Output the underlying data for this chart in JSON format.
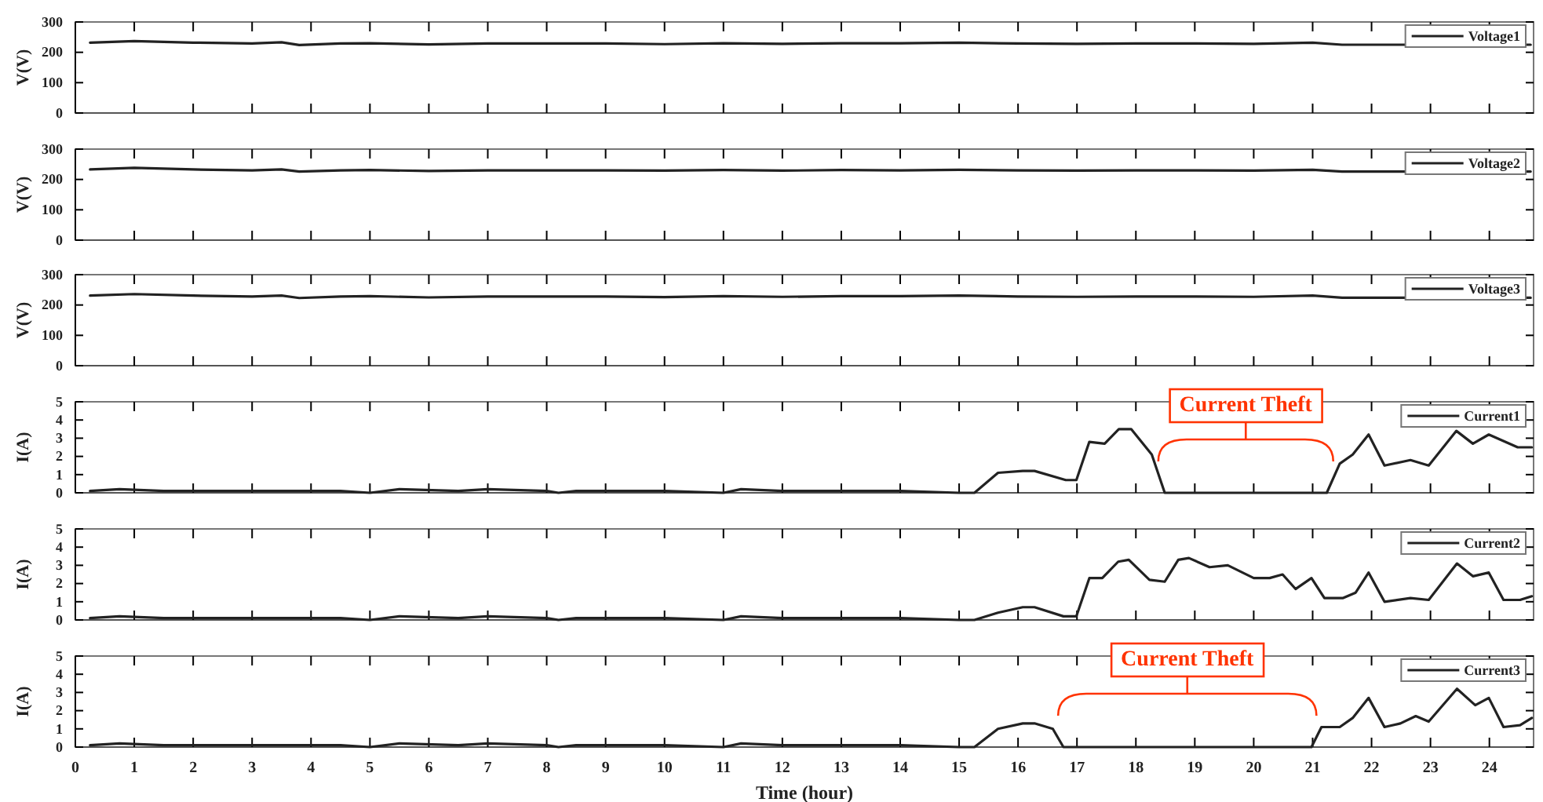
{
  "chart_data": [
    {
      "type": "line",
      "ylabel": "V(V)",
      "xlim": [
        0,
        24.75
      ],
      "xticks": [
        0,
        1,
        2,
        3,
        4,
        5,
        6,
        7,
        8,
        9,
        10,
        11,
        12,
        13,
        14,
        15,
        16,
        17,
        18,
        19,
        20,
        21,
        22,
        23,
        24
      ],
      "ylim": [
        0,
        300
      ],
      "yticks": [
        0,
        100,
        200,
        300
      ],
      "tick_labels": "y",
      "legend": "top right",
      "grid": false,
      "series": [
        {
          "name": "Voltage1",
          "color": "#222222",
          "x": [
            0.25,
            1,
            2,
            3,
            3.5,
            3.8,
            4.5,
            5,
            6,
            7,
            8,
            9,
            10,
            11,
            12,
            13,
            14,
            15,
            16,
            17,
            18,
            19,
            20,
            21,
            21.5,
            22,
            24.7
          ],
          "values": [
            232,
            237,
            232,
            229,
            233,
            224,
            229,
            230,
            226,
            229,
            229,
            229,
            227,
            230,
            228,
            230,
            230,
            232,
            229,
            228,
            229,
            229,
            228,
            232,
            225,
            225,
            225
          ]
        }
      ]
    },
    {
      "type": "line",
      "ylabel": "V(V)",
      "xlim": [
        0,
        24.75
      ],
      "xticks": [
        0,
        1,
        2,
        3,
        4,
        5,
        6,
        7,
        8,
        9,
        10,
        11,
        12,
        13,
        14,
        15,
        16,
        17,
        18,
        19,
        20,
        21,
        22,
        23,
        24
      ],
      "ylim": [
        0,
        300
      ],
      "yticks": [
        0,
        100,
        200,
        300
      ],
      "tick_labels": "y",
      "legend": "top right",
      "grid": false,
      "series": [
        {
          "name": "Voltage2",
          "color": "#222222",
          "x": [
            0.25,
            1,
            2,
            3,
            3.5,
            3.8,
            4.5,
            5,
            6,
            7,
            8,
            9,
            10,
            11,
            12,
            13,
            14,
            15,
            16,
            17,
            18,
            19,
            20,
            21,
            21.5,
            22,
            24.7
          ],
          "values": [
            233,
            238,
            233,
            230,
            233,
            226,
            230,
            231,
            228,
            230,
            230,
            230,
            229,
            231,
            229,
            231,
            230,
            232,
            230,
            229,
            230,
            230,
            229,
            232,
            226,
            226,
            226
          ]
        }
      ]
    },
    {
      "type": "line",
      "ylabel": "V(V)",
      "xlim": [
        0,
        24.75
      ],
      "xticks": [
        0,
        1,
        2,
        3,
        4,
        5,
        6,
        7,
        8,
        9,
        10,
        11,
        12,
        13,
        14,
        15,
        16,
        17,
        18,
        19,
        20,
        21,
        22,
        23,
        24
      ],
      "ylim": [
        0,
        300
      ],
      "yticks": [
        0,
        100,
        200,
        300
      ],
      "tick_labels": "y",
      "legend": "top right",
      "grid": false,
      "series": [
        {
          "name": "Voltage3",
          "color": "#222222",
          "x": [
            0.25,
            1,
            2,
            3,
            3.5,
            3.8,
            4.5,
            5,
            6,
            7,
            8,
            9,
            10,
            11,
            12,
            13,
            14,
            15,
            16,
            17,
            18,
            19,
            20,
            21,
            21.5,
            22,
            24.7
          ],
          "values": [
            231,
            236,
            231,
            228,
            231,
            223,
            228,
            229,
            225,
            228,
            228,
            228,
            226,
            229,
            227,
            229,
            229,
            231,
            228,
            227,
            228,
            228,
            227,
            231,
            224,
            224,
            224
          ]
        }
      ]
    },
    {
      "type": "line",
      "ylabel": "I(A)",
      "xlim": [
        0,
        24.75
      ],
      "xticks": [
        0,
        1,
        2,
        3,
        4,
        5,
        6,
        7,
        8,
        9,
        10,
        11,
        12,
        13,
        14,
        15,
        16,
        17,
        18,
        19,
        20,
        21,
        22,
        23,
        24
      ],
      "ylim": [
        0,
        5
      ],
      "yticks": [
        0,
        1,
        2,
        3,
        4,
        5
      ],
      "tick_labels": "y",
      "legend": "top right",
      "grid": false,
      "annotations": [
        "Current Theft"
      ],
      "series": [
        {
          "name": "Current1",
          "color": "#222222",
          "x": [
            0.25,
            0.75,
            1.5,
            2.5,
            3,
            4.5,
            5,
            5.5,
            6.5,
            7,
            8,
            8.2,
            8.5,
            9,
            10,
            11,
            11.3,
            12,
            13,
            14,
            15,
            15.26,
            15.66,
            16.08,
            16.28,
            16.81,
            16.99,
            17.21,
            17.47,
            17.71,
            17.92,
            18.27,
            18.49,
            21.24,
            21.46,
            21.68,
            21.95,
            22.22,
            22.66,
            22.97,
            23.44,
            23.72,
            23.99,
            24.48,
            24.72
          ],
          "values": [
            0.1,
            0.2,
            0.1,
            0.1,
            0.1,
            0.1,
            0,
            0.2,
            0.1,
            0.2,
            0.1,
            0,
            0.1,
            0.1,
            0.1,
            0,
            0.2,
            0.1,
            0.1,
            0.1,
            0,
            0,
            1.1,
            1.2,
            1.2,
            0.7,
            0.7,
            2.8,
            2.7,
            3.5,
            3.5,
            2.1,
            0,
            0,
            1.6,
            2.1,
            3.2,
            1.5,
            1.8,
            1.5,
            3.4,
            2.7,
            3.2,
            2.5,
            2.5
          ]
        }
      ]
    },
    {
      "type": "line",
      "ylabel": "I(A)",
      "xlim": [
        0,
        24.75
      ],
      "xticks": [
        0,
        1,
        2,
        3,
        4,
        5,
        6,
        7,
        8,
        9,
        10,
        11,
        12,
        13,
        14,
        15,
        16,
        17,
        18,
        19,
        20,
        21,
        22,
        23,
        24
      ],
      "ylim": [
        0,
        5
      ],
      "yticks": [
        0,
        1,
        2,
        3,
        4,
        5
      ],
      "tick_labels": "y",
      "legend": "top right",
      "grid": false,
      "series": [
        {
          "name": "Current2",
          "color": "#222222",
          "x": [
            0.25,
            0.75,
            1.5,
            2.5,
            3,
            4.5,
            5,
            5.5,
            6.5,
            7,
            8,
            8.2,
            8.5,
            9,
            10,
            11,
            11.3,
            12,
            13,
            14,
            15,
            15.26,
            15.66,
            16.08,
            16.28,
            16.77,
            16.99,
            17.21,
            17.43,
            17.7,
            17.88,
            18.23,
            18.49,
            18.72,
            18.9,
            19.25,
            19.56,
            20,
            20.27,
            20.49,
            20.71,
            20.98,
            21.2,
            21.51,
            21.73,
            21.95,
            22.22,
            22.66,
            22.97,
            23.45,
            23.72,
            23.99,
            24.24,
            24.52,
            24.72
          ],
          "values": [
            0.1,
            0.2,
            0.1,
            0.1,
            0.1,
            0.1,
            0,
            0.2,
            0.1,
            0.2,
            0.1,
            0,
            0.1,
            0.1,
            0.1,
            0,
            0.2,
            0.1,
            0.1,
            0.1,
            0,
            0,
            0.4,
            0.7,
            0.7,
            0.2,
            0.2,
            2.3,
            2.3,
            3.2,
            3.3,
            2.2,
            2.1,
            3.3,
            3.4,
            2.9,
            3,
            2.3,
            2.3,
            2.5,
            1.7,
            2.3,
            1.2,
            1.2,
            1.5,
            2.6,
            1,
            1.2,
            1.1,
            3.1,
            2.4,
            2.6,
            1.1,
            1.1,
            1.3
          ]
        }
      ]
    },
    {
      "type": "line",
      "ylabel": "I(A)",
      "xlabel": "Time (hour)",
      "xlim": [
        0,
        24.75
      ],
      "xticks": [
        0,
        1,
        2,
        3,
        4,
        5,
        6,
        7,
        8,
        9,
        10,
        11,
        12,
        13,
        14,
        15,
        16,
        17,
        18,
        19,
        20,
        21,
        22,
        23,
        24
      ],
      "ylim": [
        0,
        5
      ],
      "yticks": [
        0,
        1,
        2,
        3,
        4,
        5
      ],
      "legend": "top right",
      "grid": false,
      "annotations": [
        "Current Theft"
      ],
      "series": [
        {
          "name": "Current3",
          "color": "#222222",
          "x": [
            0.25,
            0.75,
            1.5,
            2.5,
            3,
            4.5,
            5,
            5.5,
            6.5,
            7,
            8,
            8.2,
            8.5,
            9,
            10,
            11,
            11.3,
            12,
            13,
            14,
            15,
            15.26,
            15.66,
            16.08,
            16.28,
            16.59,
            16.77,
            20.98,
            21.15,
            21.46,
            21.68,
            21.95,
            22.22,
            22.49,
            22.75,
            22.97,
            23.45,
            23.76,
            23.99,
            24.24,
            24.52,
            24.72
          ],
          "values": [
            0.1,
            0.2,
            0.1,
            0.1,
            0.1,
            0.1,
            0,
            0.2,
            0.1,
            0.2,
            0.1,
            0,
            0.1,
            0.1,
            0.1,
            0,
            0.2,
            0.1,
            0.1,
            0.1,
            0,
            0,
            1,
            1.3,
            1.3,
            1,
            0,
            0,
            1.1,
            1.1,
            1.6,
            2.7,
            1.1,
            1.3,
            1.7,
            1.4,
            3.2,
            2.3,
            2.7,
            1.1,
            1.2,
            1.6
          ]
        }
      ]
    }
  ]
}
